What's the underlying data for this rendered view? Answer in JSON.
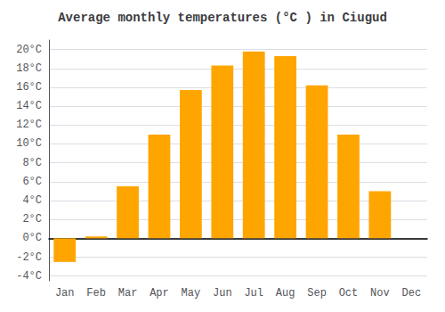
{
  "chart_data": {
    "type": "bar",
    "title": "Average monthly temperatures (°C ) in Ciugud",
    "categories": [
      "Jan",
      "Feb",
      "Mar",
      "Apr",
      "May",
      "Jun",
      "Jul",
      "Aug",
      "Sep",
      "Oct",
      "Nov",
      "Dec"
    ],
    "values": [
      -2.5,
      0.2,
      5.5,
      11.0,
      15.7,
      18.3,
      19.8,
      19.3,
      16.2,
      11.0,
      5.0,
      0.0
    ],
    "color": "#FFA500",
    "ylim": [
      -4.5,
      21
    ],
    "yticks": [
      {
        "value": -4,
        "label": "-4°C"
      },
      {
        "value": -2,
        "label": "-2°C"
      },
      {
        "value": 0,
        "label": "0°C"
      },
      {
        "value": 2,
        "label": "2°C"
      },
      {
        "value": 4,
        "label": "4°C"
      },
      {
        "value": 6,
        "label": "6°C"
      },
      {
        "value": 8,
        "label": "8°C"
      },
      {
        "value": 10,
        "label": "10°C"
      },
      {
        "value": 12,
        "label": "12°C"
      },
      {
        "value": 14,
        "label": "14°C"
      },
      {
        "value": 16,
        "label": "16°C"
      },
      {
        "value": 18,
        "label": "18°C"
      },
      {
        "value": 20,
        "label": "20°C"
      }
    ],
    "grid": true
  }
}
